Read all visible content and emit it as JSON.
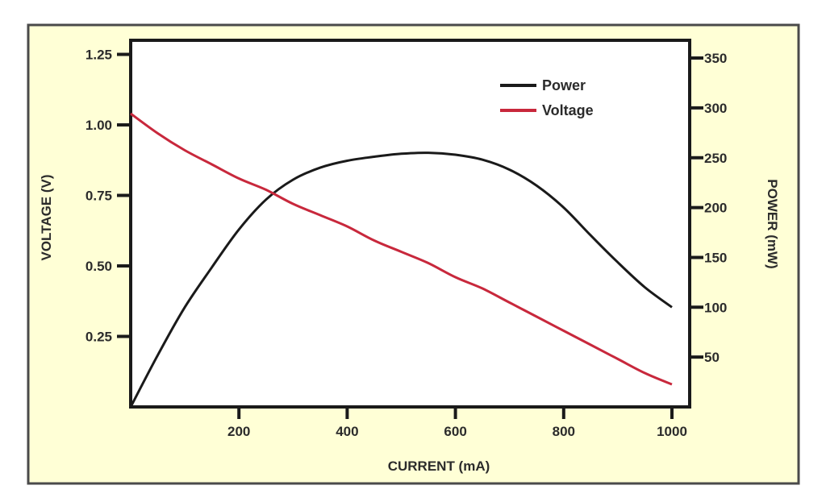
{
  "chart_data": {
    "type": "line",
    "title": "",
    "xlabel": "CURRENT (mA)",
    "ylabel": "VOLTAGE (V)",
    "y2label": "POWER (mW)",
    "xlim": [
      0,
      1030
    ],
    "ylim": [
      0,
      1.3
    ],
    "y2lim": [
      0,
      365
    ],
    "x_ticks": [
      200,
      400,
      600,
      800,
      1000
    ],
    "y_ticks": [
      0.25,
      0.5,
      0.75,
      1.0,
      1.25
    ],
    "y_tick_labels": [
      "0.25",
      "0.50",
      "0.75",
      "1.00",
      "1.25"
    ],
    "y2_ticks": [
      50,
      100,
      150,
      200,
      250,
      300,
      350
    ],
    "grid": false,
    "legend_position": "upper right (inside plot)",
    "series": [
      {
        "name": "Power",
        "axis": "right",
        "color": "#1a1a1a",
        "x": [
          0,
          50,
          100,
          150,
          200,
          250,
          300,
          350,
          400,
          450,
          500,
          550,
          600,
          650,
          700,
          750,
          800,
          850,
          900,
          950,
          1000
        ],
        "values": [
          0,
          52,
          100,
          140,
          178,
          208,
          228,
          240,
          247,
          251,
          254,
          255,
          253,
          248,
          238,
          222,
          200,
          172,
          145,
          120,
          100
        ]
      },
      {
        "name": "Voltage",
        "axis": "left",
        "color": "#c8283c",
        "x": [
          0,
          50,
          100,
          150,
          200,
          250,
          300,
          350,
          400,
          450,
          500,
          550,
          600,
          650,
          700,
          750,
          800,
          850,
          900,
          950,
          1000
        ],
        "values": [
          1.04,
          0.97,
          0.91,
          0.86,
          0.81,
          0.77,
          0.72,
          0.68,
          0.64,
          0.59,
          0.55,
          0.51,
          0.46,
          0.42,
          0.37,
          0.32,
          0.27,
          0.22,
          0.17,
          0.12,
          0.08
        ]
      }
    ]
  },
  "colors": {
    "frame_background": "#FFFFD6",
    "plot_background": "#FFFFFF",
    "axis": "#1a1a1a",
    "power": "#1a1a1a",
    "voltage": "#c8283c"
  }
}
